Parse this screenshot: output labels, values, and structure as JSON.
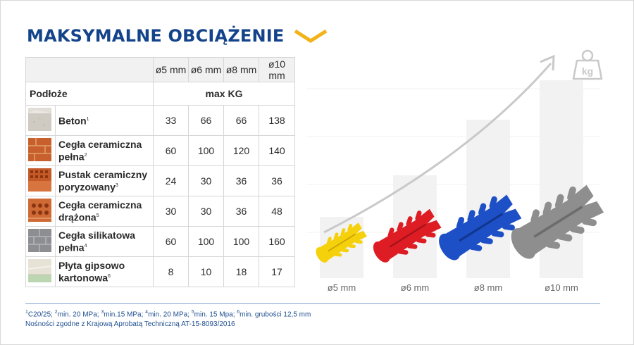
{
  "title": "MAKSYMALNE OBCIĄŻENIE",
  "table": {
    "diameters": [
      "ø5 mm",
      "ø6 mm",
      "ø8 mm",
      "ø10 mm"
    ],
    "substrate_label": "Podłoże",
    "unit_prefix": "max",
    "unit": "KG",
    "rows": [
      {
        "name1": "Beton",
        "name2": "",
        "sup": "1",
        "values": [
          "33",
          "66",
          "66",
          "138"
        ],
        "swatch": "concrete"
      },
      {
        "name1": "Cegła ceramiczna",
        "name2": "pełna",
        "sup": "2",
        "values": [
          "60",
          "100",
          "120",
          "140"
        ],
        "swatch": "brick-solid"
      },
      {
        "name1": "Pustak ceramiczny",
        "name2": "poryzowany",
        "sup": "3",
        "values": [
          "24",
          "30",
          "36",
          "36"
        ],
        "swatch": "brick-porous"
      },
      {
        "name1": "Cegła ceramiczna",
        "name2": "drążona",
        "sup": "5",
        "values": [
          "30",
          "30",
          "36",
          "48"
        ],
        "swatch": "brick-hollow"
      },
      {
        "name1": "Cegła silikatowa",
        "name2": "pełna",
        "sup": "4",
        "values": [
          "60",
          "100",
          "100",
          "160"
        ],
        "swatch": "silicate"
      },
      {
        "name1": "Płyta gipsowo",
        "name2": "kartonowa",
        "sup": "6",
        "values": [
          "8",
          "10",
          "18",
          "17"
        ],
        "swatch": "plasterboard"
      }
    ]
  },
  "chart_data": {
    "type": "bar",
    "categories": [
      "ø5 mm",
      "ø6 mm",
      "ø8 mm",
      "ø10 mm"
    ],
    "values": [
      1,
      2,
      3,
      4
    ],
    "title": "",
    "xlabel": "",
    "ylabel": "",
    "plug_colors": [
      "#f5d10c",
      "#dd1c24",
      "#1d4fc6",
      "#8e8e8e"
    ],
    "bar_color": "#f2f2f2",
    "arrow_color": "#c9c9c9",
    "icon": "weight-kg-icon",
    "icon_label": "kg"
  },
  "footnote": {
    "line1": [
      {
        "sup": "1",
        "text": "C20/25; "
      },
      {
        "sup": "2",
        "text": "min. 20 MPa; "
      },
      {
        "sup": "3",
        "text": "min.15 MPa; "
      },
      {
        "sup": "4",
        "text": "min. 20 MPa; "
      },
      {
        "sup": "5",
        "text": "min. 15 Mpa; "
      },
      {
        "sup": "6",
        "text": "min. grubości 12,5 mm"
      }
    ],
    "line2": "Nośności zgodne z Krajową Aprobatą Techniczną AT-15-8093/2016"
  }
}
